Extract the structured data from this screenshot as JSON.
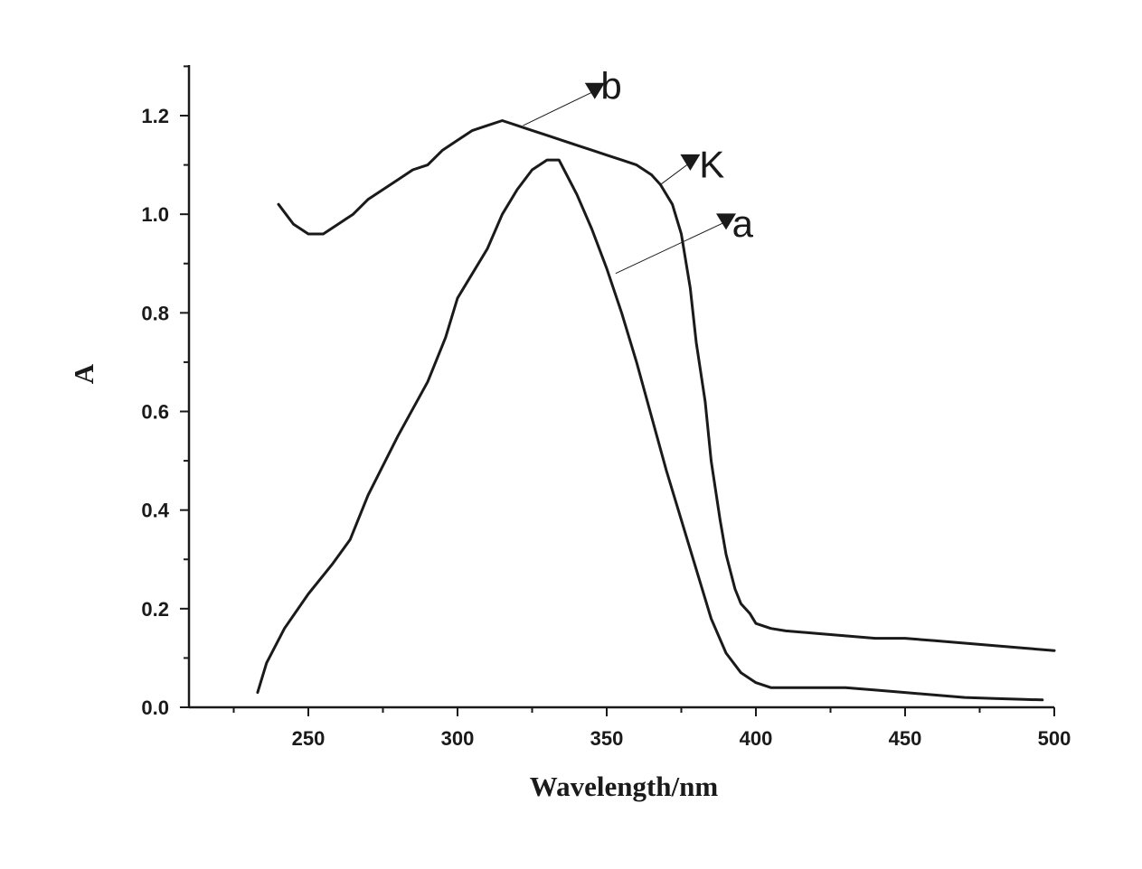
{
  "chart_data": {
    "type": "line",
    "xlabel": "Wavelength/nm",
    "ylabel": "A",
    "xlim": [
      210,
      500
    ],
    "ylim": [
      0.0,
      1.3
    ],
    "xticks": [
      250,
      300,
      350,
      400,
      450,
      500
    ],
    "xtick_labels": [
      "250",
      "300",
      "350",
      "400",
      "450",
      "500"
    ],
    "yticks": [
      0.0,
      0.2,
      0.4,
      0.6,
      0.8,
      1.0,
      1.2
    ],
    "ytick_labels": [
      "0.0",
      "0.2",
      "0.4",
      "0.6",
      "0.8",
      "1.0",
      "1.2"
    ],
    "grid": false,
    "series": [
      {
        "name": "a",
        "x": [
          233,
          236,
          242,
          250,
          258,
          264,
          270,
          280,
          290,
          296,
          300,
          305,
          310,
          315,
          320,
          325,
          330,
          334,
          340,
          345,
          350,
          355,
          360,
          365,
          370,
          375,
          380,
          385,
          390,
          395,
          400,
          405,
          410,
          420,
          430,
          440,
          450,
          460,
          470,
          480,
          490,
          496
        ],
        "y": [
          0.03,
          0.09,
          0.16,
          0.23,
          0.29,
          0.34,
          0.43,
          0.55,
          0.66,
          0.75,
          0.83,
          0.88,
          0.93,
          1.0,
          1.05,
          1.09,
          1.11,
          1.11,
          1.04,
          0.97,
          0.89,
          0.8,
          0.7,
          0.59,
          0.48,
          0.38,
          0.28,
          0.18,
          0.11,
          0.07,
          0.05,
          0.04,
          0.04,
          0.04,
          0.04,
          0.035,
          0.03,
          0.025,
          0.02,
          0.018,
          0.016,
          0.015
        ]
      },
      {
        "name": "b",
        "x": [
          240,
          245,
          250,
          255,
          260,
          265,
          270,
          275,
          280,
          285,
          290,
          295,
          300,
          305,
          310,
          315,
          320,
          325,
          330,
          335,
          340,
          345,
          350,
          355,
          360,
          365,
          368,
          372,
          375,
          378,
          380,
          383,
          385,
          388,
          390,
          393,
          395,
          398,
          400,
          405,
          410,
          420,
          430,
          440,
          450,
          460,
          470,
          480,
          490,
          500
        ],
        "y": [
          1.02,
          0.98,
          0.96,
          0.96,
          0.98,
          1.0,
          1.03,
          1.05,
          1.07,
          1.09,
          1.1,
          1.13,
          1.15,
          1.17,
          1.18,
          1.19,
          1.18,
          1.17,
          1.16,
          1.15,
          1.14,
          1.13,
          1.12,
          1.11,
          1.1,
          1.08,
          1.06,
          1.02,
          0.96,
          0.85,
          0.74,
          0.62,
          0.5,
          0.38,
          0.31,
          0.24,
          0.21,
          0.19,
          0.17,
          0.16,
          0.155,
          0.15,
          0.145,
          0.14,
          0.14,
          0.135,
          0.13,
          0.125,
          0.12,
          0.115
        ]
      }
    ],
    "annotations": [
      {
        "text": "b",
        "point": [
          322,
          1.18
        ],
        "arrow_tip": [
          346,
          1.25
        ],
        "text_pos": [
          348,
          1.26
        ]
      },
      {
        "text": "K",
        "point": [
          368,
          1.06
        ],
        "arrow_tip": [
          378,
          1.105
        ],
        "text_pos": [
          381,
          1.1
        ]
      },
      {
        "text": "a",
        "point": [
          353,
          0.88
        ],
        "arrow_tip": [
          390,
          0.985
        ],
        "text_pos": [
          392,
          0.98
        ]
      }
    ]
  }
}
